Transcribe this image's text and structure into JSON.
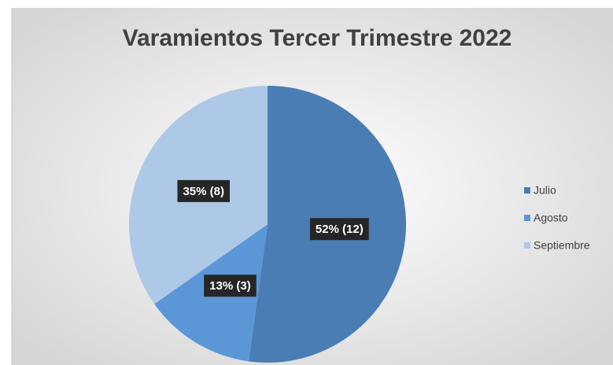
{
  "chart_data": {
    "type": "pie",
    "title": "Varamientos Tercer Trimestre 2022",
    "categories": [
      "Julio",
      "Agosto",
      "Septiembre"
    ],
    "values": [
      12,
      3,
      8
    ],
    "value_labels": [
      "52% (12)",
      "13% (3)",
      "35% (8)"
    ],
    "colors": [
      "#4a7db4",
      "#5b96d6",
      "#aec8e8"
    ],
    "legend": "right"
  }
}
